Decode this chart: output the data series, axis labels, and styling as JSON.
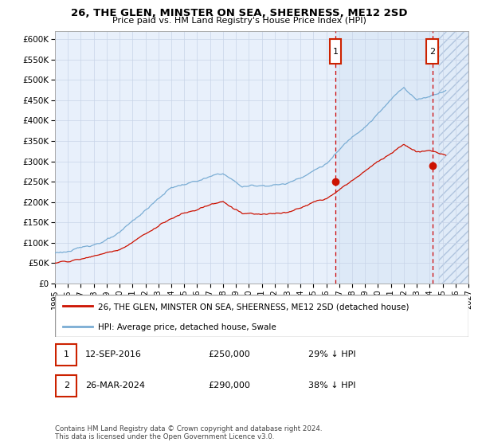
{
  "title": "26, THE GLEN, MINSTER ON SEA, SHEERNESS, ME12 2SD",
  "subtitle": "Price paid vs. HM Land Registry's House Price Index (HPI)",
  "hpi_label": "HPI: Average price, detached house, Swale",
  "property_label": "26, THE GLEN, MINSTER ON SEA, SHEERNESS, ME12 2SD (detached house)",
  "copyright_text": "Contains HM Land Registry data © Crown copyright and database right 2024.\nThis data is licensed under the Open Government Licence v3.0.",
  "sale1_date": "12-SEP-2016",
  "sale1_price": 250000,
  "sale1_hpi_text": "29% ↓ HPI",
  "sale1_year": 2016.7,
  "sale2_date": "26-MAR-2024",
  "sale2_price": 290000,
  "sale2_hpi_text": "38% ↓ HPI",
  "sale2_year": 2024.2,
  "ylim": [
    0,
    620000
  ],
  "xlim": [
    1995,
    2027
  ],
  "yticks": [
    0,
    50000,
    100000,
    150000,
    200000,
    250000,
    300000,
    350000,
    400000,
    450000,
    500000,
    550000,
    600000
  ],
  "xticks": [
    1995,
    1996,
    1997,
    1998,
    1999,
    2000,
    2001,
    2002,
    2003,
    2004,
    2005,
    2006,
    2007,
    2008,
    2009,
    2010,
    2011,
    2012,
    2013,
    2014,
    2015,
    2016,
    2017,
    2018,
    2019,
    2020,
    2021,
    2022,
    2023,
    2024,
    2025,
    2026,
    2027
  ],
  "hpi_color": "#7aadd4",
  "price_color": "#cc1100",
  "background_plot": "#e8f0fb",
  "grid_color": "#c8d4e8",
  "vline_color": "#cc0000",
  "marker_box_color": "#cc2200",
  "shade_after_sale1_color": "#d8e8f8",
  "future_start": 2024.7
}
